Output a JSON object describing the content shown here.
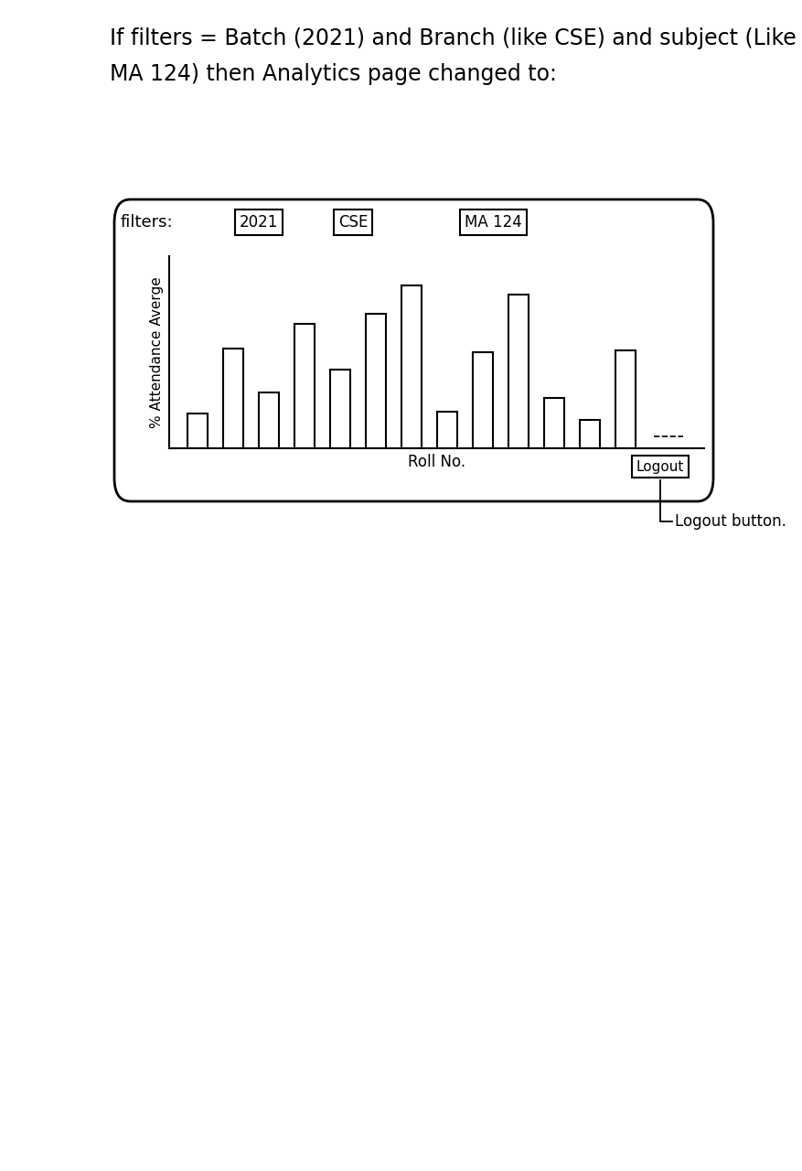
{
  "header": {
    "text": "If filters = Batch (2021) and Branch (like CSE) and subject (Like MA 124) then Analytics page changed to:"
  },
  "filters": {
    "label": "filters:",
    "values": [
      "2021",
      "CSE",
      "MA 124"
    ]
  },
  "chart_data": {
    "type": "bar",
    "y_label": "% Attendance Averge",
    "x_label": "Roll No.",
    "values": [
      18,
      52,
      29,
      65,
      41,
      70,
      85,
      19,
      50,
      80,
      26,
      15,
      51
    ],
    "ylim": [
      0,
      100
    ],
    "tick_labels": false
  },
  "logout_button": {
    "label": "Logout"
  },
  "callout": {
    "text": "Logout button."
  }
}
